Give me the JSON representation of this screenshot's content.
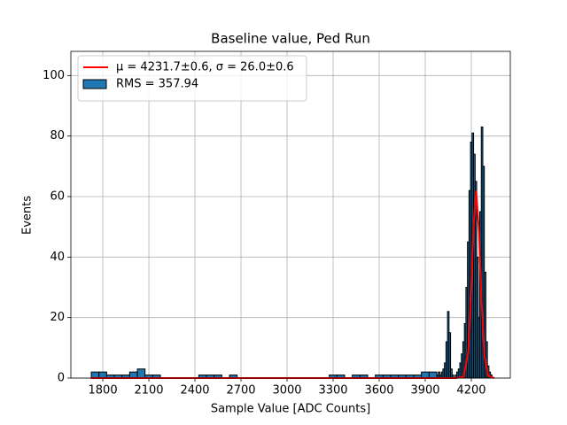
{
  "chart_data": {
    "type": "histogram",
    "title": "Baseline value, Ped Run",
    "xlabel": "Sample Value [ADC Counts]",
    "ylabel": "Events",
    "xlim": [
      1592,
      4454
    ],
    "ylim": [
      0,
      108
    ],
    "xticks": [
      1800,
      2100,
      2400,
      2700,
      3000,
      3300,
      3600,
      3900,
      4200
    ],
    "yticks": [
      0,
      20,
      40,
      60,
      80,
      100
    ],
    "grid": true,
    "legend": "upper left",
    "series": [
      {
        "name": "μ = 4231.7±0.6, σ = 26.0±0.6",
        "type": "line",
        "color": "#ff0000",
        "x": [
          1720,
          4100,
          4150,
          4180,
          4200,
          4215,
          4232,
          4250,
          4265,
          4285,
          4310,
          4350
        ],
        "values": [
          0,
          0,
          0.4,
          8.6,
          29.5,
          50.4,
          62,
          48.4,
          27.3,
          7.6,
          0.7,
          0
        ]
      },
      {
        "name": "RMS = 357.94",
        "type": "histogram",
        "color": "#1f77b4",
        "edgecolor": "#000000",
        "bins": [
          1725,
          1775,
          1825,
          1875,
          1925,
          1975,
          2025,
          2075,
          2125,
          2175,
          2225,
          2275,
          2325,
          2375,
          2425,
          2475,
          2525,
          2575,
          2625,
          2675,
          2725,
          2775,
          2825,
          2875,
          2925,
          2975,
          3025,
          3075,
          3125,
          3175,
          3225,
          3275,
          3325,
          3375,
          3425,
          3475,
          3525,
          3575,
          3625,
          3675,
          3725,
          3775,
          3825,
          3875,
          3925,
          3975,
          3985,
          3995,
          4005,
          4015,
          4025,
          4035,
          4045,
          4055,
          4065,
          4075,
          4085,
          4095,
          4105,
          4115,
          4125,
          4135,
          4145,
          4155,
          4165,
          4175,
          4185,
          4195,
          4205,
          4215,
          4225,
          4235,
          4245,
          4255,
          4265,
          4275,
          4285,
          4295,
          4305,
          4315,
          4325,
          4335,
          4345
        ],
        "values": [
          2,
          2,
          1,
          1,
          1,
          2,
          3,
          1,
          1,
          0,
          0,
          0,
          0,
          0,
          1,
          1,
          1,
          0,
          1,
          0,
          0,
          0,
          0,
          0,
          0,
          0,
          0,
          0,
          0,
          0,
          0,
          1,
          1,
          0,
          1,
          1,
          0,
          1,
          1,
          1,
          1,
          1,
          1,
          2,
          2,
          1,
          2,
          1,
          2,
          3,
          5,
          12,
          22,
          15,
          3,
          1,
          0,
          1,
          2,
          3,
          5,
          8,
          12,
          18,
          30,
          45,
          62,
          78,
          81,
          74,
          65,
          40,
          20,
          55,
          83,
          70,
          35,
          12,
          4,
          2,
          1,
          0
        ]
      }
    ]
  }
}
